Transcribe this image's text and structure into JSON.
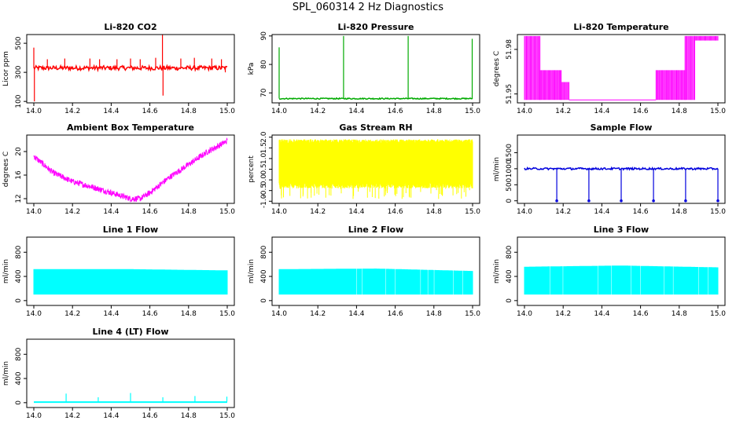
{
  "page_title": "SPL_060314  2 Hz Diagnostics",
  "chart_data": [
    {
      "type": "line",
      "title": "Li-820 CO2",
      "ylabel": "Licor ppm",
      "color": "#ff0000",
      "xlim": [
        14.0,
        15.0
      ],
      "ylim": [
        90,
        560
      ],
      "x_ticks": [
        "14.0",
        "14.2",
        "14.4",
        "14.6",
        "14.8",
        "15.0"
      ],
      "y_ticks": [
        100,
        300,
        500
      ],
      "pattern": "co2",
      "baseline": 330,
      "noise": 15,
      "spikes": [
        [
          14.0,
          470
        ],
        [
          14.003,
          100
        ],
        [
          14.07,
          390
        ],
        [
          14.16,
          395
        ],
        [
          14.17,
          340
        ],
        [
          14.29,
          395
        ],
        [
          14.34,
          390
        ],
        [
          14.43,
          390
        ],
        [
          14.5,
          395
        ],
        [
          14.55,
          390
        ],
        [
          14.63,
          400
        ],
        [
          14.665,
          560
        ],
        [
          14.668,
          140
        ],
        [
          14.76,
          395
        ],
        [
          14.83,
          400
        ],
        [
          14.92,
          395
        ],
        [
          14.97,
          390
        ],
        [
          14.99,
          300
        ]
      ]
    },
    {
      "type": "line",
      "title": "Li-820 Pressure",
      "ylabel": "kPa",
      "color": "#00aa00",
      "xlim": [
        14.0,
        15.0
      ],
      "ylim": [
        66.5,
        90.5
      ],
      "x_ticks": [
        "14.0",
        "14.2",
        "14.4",
        "14.6",
        "14.8",
        "15.0"
      ],
      "y_ticks": [
        70,
        80,
        90
      ],
      "pattern": "pressure",
      "baseline": 68.0,
      "noise": 0.2,
      "spikes": [
        [
          14.0,
          86
        ],
        [
          14.333,
          90
        ],
        [
          14.667,
          90
        ],
        [
          14.998,
          89
        ]
      ]
    },
    {
      "type": "line",
      "title": "Li-820 Temperature",
      "ylabel": "degrees C",
      "color": "#ff00ff",
      "xlim": [
        14.0,
        15.0
      ],
      "ylim": [
        51.944,
        51.99
      ],
      "x_ticks": [
        "14.0",
        "14.2",
        "14.4",
        "14.6",
        "14.8",
        "15.0"
      ],
      "y_ticks": [
        51.95,
        51.98
      ],
      "pattern": "licortemp",
      "segments": [
        [
          14.0,
          14.08,
          51.946,
          51.989
        ],
        [
          14.08,
          14.19,
          51.946,
          51.966
        ],
        [
          14.19,
          14.23,
          51.946,
          51.958
        ],
        [
          14.23,
          14.68,
          51.946,
          51.946
        ],
        [
          14.68,
          14.83,
          51.946,
          51.966
        ],
        [
          14.83,
          14.88,
          51.946,
          51.989
        ],
        [
          14.88,
          15.0,
          51.986,
          51.989
        ]
      ]
    },
    {
      "type": "line",
      "title": "Ambient Box Temperature",
      "ylabel": "degrees C",
      "color": "#ff00ff",
      "xlim": [
        14.0,
        15.0
      ],
      "ylim": [
        11.2,
        22.8
      ],
      "x_ticks": [
        "14.0",
        "14.2",
        "14.4",
        "14.6",
        "14.8",
        "15.0"
      ],
      "y_ticks": [
        12,
        16,
        20
      ],
      "pattern": "ambient",
      "curve": [
        [
          14.0,
          19.2
        ],
        [
          14.1,
          16.4
        ],
        [
          14.2,
          14.9
        ],
        [
          14.3,
          14.0
        ],
        [
          14.4,
          13.0
        ],
        [
          14.5,
          12.0
        ],
        [
          14.55,
          12.0
        ],
        [
          14.6,
          13.0
        ],
        [
          14.7,
          15.6
        ],
        [
          14.8,
          17.8
        ],
        [
          14.9,
          20.0
        ],
        [
          15.0,
          21.8
        ]
      ],
      "noise": 0.5
    },
    {
      "type": "line",
      "title": "Gas Stream RH",
      "ylabel": "percent",
      "color": "#ffff00",
      "xlim": [
        14.0,
        15.0
      ],
      "ylim": [
        -1.1,
        2.1
      ],
      "x_ticks": [
        "14.0",
        "14.2",
        "14.4",
        "14.6",
        "14.8",
        "15.0"
      ],
      "y_ticks": [
        "-1.0",
        "-0.5",
        "0.0",
        "0.5",
        "1.0",
        "1.5",
        "2.0"
      ],
      "pattern": "rh",
      "band": [
        -0.4,
        1.9
      ]
    },
    {
      "type": "line",
      "title": "Sample Flow",
      "ylabel": "ml/min",
      "color": "#0000dd",
      "xlim": [
        14.0,
        15.0
      ],
      "ylim": [
        -80,
        2050
      ],
      "x_ticks": [
        "14.0",
        "14.2",
        "14.4",
        "14.6",
        "14.8",
        "15.0"
      ],
      "y_ticks": [
        0,
        500,
        1000,
        1500
      ],
      "pattern": "sample",
      "baseline": 1000,
      "noise": 30,
      "drops": [
        14.167,
        14.333,
        14.5,
        14.667,
        14.833,
        15.0
      ]
    },
    {
      "type": "line",
      "title": "Line 1 Flow",
      "ylabel": "ml/min",
      "color": "#00ffff",
      "xlim": [
        14.0,
        15.0
      ],
      "ylim": [
        -80,
        1050
      ],
      "x_ticks": [
        "14.0",
        "14.2",
        "14.4",
        "14.6",
        "14.8",
        "15.0"
      ],
      "y_ticks": [
        0,
        400,
        800
      ],
      "pattern": "lineflow",
      "top": [
        520,
        520,
        500
      ],
      "bottom": 100,
      "gaps": [
        14.16,
        14.33,
        14.5,
        14.66,
        14.83
      ]
    },
    {
      "type": "line",
      "title": "Line 2 Flow",
      "ylabel": "ml/min",
      "color": "#00ffff",
      "xlim": [
        14.0,
        15.0
      ],
      "ylim": [
        -80,
        1050
      ],
      "x_ticks": [
        "14.0",
        "14.2",
        "14.4",
        "14.6",
        "14.8",
        "15.0"
      ],
      "y_ticks": [
        0,
        400,
        800
      ],
      "pattern": "lineflow",
      "top": [
        520,
        530,
        490
      ],
      "bottom": 100,
      "gaps": [
        14.17,
        14.33,
        14.4,
        14.43,
        14.5,
        14.55,
        14.6,
        14.66,
        14.73,
        14.77,
        14.8,
        14.83,
        14.9,
        14.95
      ]
    },
    {
      "type": "line",
      "title": "Line 3 Flow",
      "ylabel": "ml/min",
      "color": "#00ffff",
      "xlim": [
        14.0,
        15.0
      ],
      "ylim": [
        -80,
        1050
      ],
      "x_ticks": [
        "14.0",
        "14.2",
        "14.4",
        "14.6",
        "14.8",
        "15.0"
      ],
      "y_ticks": [
        0,
        400,
        800
      ],
      "pattern": "lineflow",
      "top": [
        560,
        580,
        550
      ],
      "bottom": 100,
      "gaps": [
        14.13,
        14.16,
        14.2,
        14.26,
        14.33,
        14.38,
        14.45,
        14.5,
        14.55,
        14.6,
        14.66,
        14.72,
        14.77,
        14.83,
        14.9,
        14.95
      ]
    },
    {
      "type": "line",
      "title": "Line 4 (LT) Flow",
      "ylabel": "ml/min",
      "color": "#00ffff",
      "xlim": [
        14.0,
        15.0
      ],
      "ylim": [
        -80,
        1050
      ],
      "x_ticks": [
        "14.0",
        "14.2",
        "14.4",
        "14.6",
        "14.8",
        "15.0"
      ],
      "y_ticks": [
        0,
        400,
        800
      ],
      "pattern": "line4",
      "baseline": 10,
      "spikes": [
        [
          14.167,
          150
        ],
        [
          14.333,
          90
        ],
        [
          14.5,
          160
        ],
        [
          14.667,
          90
        ],
        [
          14.833,
          110
        ],
        [
          14.998,
          100
        ]
      ]
    }
  ]
}
